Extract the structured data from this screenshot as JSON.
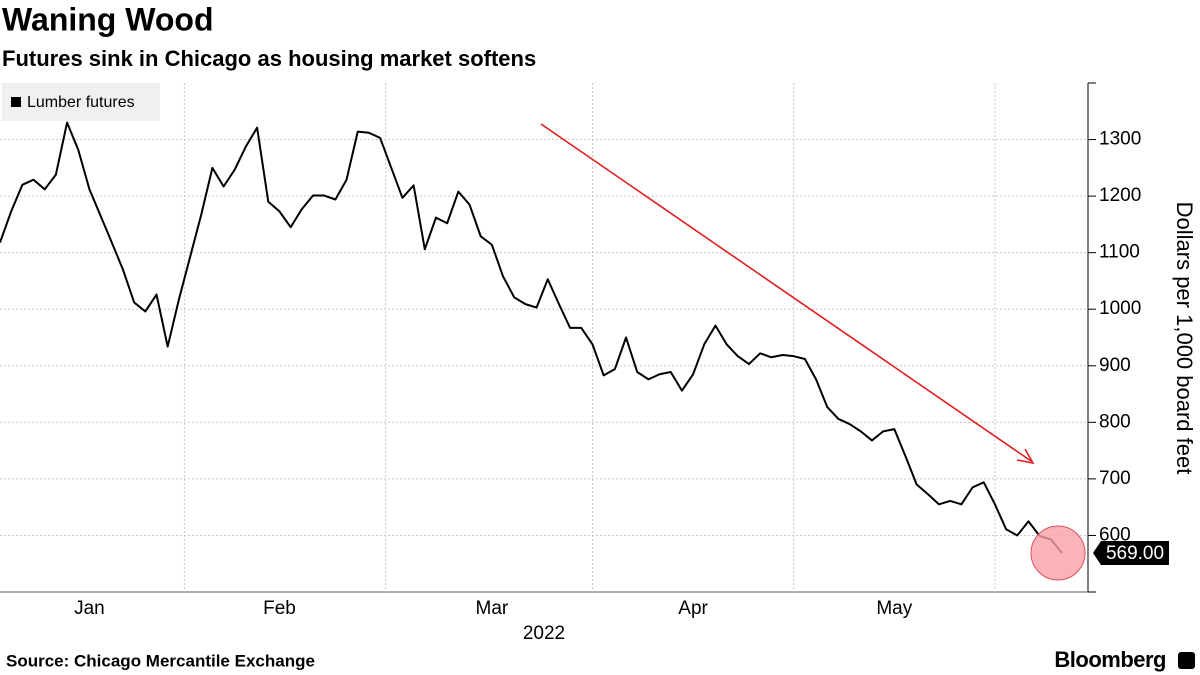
{
  "chart_data": {
    "type": "line",
    "title": "Waning Wood",
    "subtitle": "Futures sink in Chicago as housing market softens",
    "source": "Source: Chicago Mercantile Exchange",
    "brand": "Bloomberg",
    "ylabel": "Dollars per 1,000 board feet",
    "xlabel": "2022",
    "categories": [
      null,
      null,
      null,
      null,
      null,
      null,
      null,
      null,
      "Jan",
      null,
      null,
      null,
      null,
      null,
      null,
      null,
      null,
      null,
      null,
      null,
      null,
      null,
      null,
      null,
      null,
      "Feb",
      null,
      null,
      null,
      null,
      null,
      null,
      null,
      null,
      null,
      null,
      null,
      null,
      null,
      null,
      null,
      null,
      null,
      null,
      "Mar",
      null,
      null,
      null,
      null,
      null,
      null,
      null,
      null,
      null,
      null,
      null,
      null,
      null,
      null,
      null,
      null,
      null,
      "Apr",
      null,
      null,
      null,
      null,
      null,
      null,
      null,
      null,
      null,
      null,
      null,
      null,
      null,
      null,
      null,
      null,
      null,
      "May",
      null,
      null,
      null,
      null,
      null,
      null,
      null,
      null,
      null,
      null,
      null,
      null,
      null,
      null,
      null
    ],
    "series": [
      {
        "name": "Lumber futures",
        "color": "#000000",
        "values": [
          1118,
          1173,
          1220,
          1229,
          1212,
          1238,
          1330,
          1282,
          1212,
          1165,
          1118,
          1070,
          1012,
          996,
          1026,
          934,
          1017,
          1092,
          1167,
          1250,
          1217,
          1247,
          1288,
          1321,
          1190,
          1173,
          1145,
          1177,
          1201,
          1201,
          1194,
          1229,
          1314,
          1312,
          1303,
          1250,
          1197,
          1219,
          1106,
          1162,
          1152,
          1208,
          1185,
          1129,
          1114,
          1058,
          1021,
          1009,
          1003,
          1053,
          1009,
          967,
          967,
          938,
          883,
          894,
          950,
          889,
          876,
          885,
          889,
          856,
          885,
          938,
          971,
          938,
          917,
          903,
          922,
          915,
          919,
          917,
          912,
          876,
          827,
          806,
          797,
          784,
          768,
          784,
          788,
          740,
          690,
          673,
          655,
          661,
          655,
          685,
          694,
          655,
          611,
          600,
          625,
          599,
          593,
          569
        ],
        "value_labels": [
          null,
          null,
          null,
          null,
          null,
          null,
          null,
          null,
          null,
          null,
          null,
          null,
          null,
          null,
          null,
          null,
          null,
          null,
          null,
          null,
          null,
          null,
          null,
          null,
          null,
          null,
          null,
          null,
          null,
          null,
          null,
          null,
          null,
          null,
          null,
          null,
          null,
          null,
          null,
          null,
          null,
          null,
          null,
          null,
          null,
          null,
          null,
          null,
          null,
          null,
          null,
          null,
          null,
          null,
          null,
          null,
          null,
          null,
          null,
          null,
          null,
          null,
          null,
          null,
          null,
          null,
          null,
          null,
          null,
          null,
          null,
          null,
          null,
          null,
          null,
          null,
          null,
          null,
          null,
          null,
          null,
          null,
          null,
          null,
          null,
          null,
          null,
          null,
          null,
          null,
          null,
          null,
          null,
          null,
          null,
          "569.00"
        ]
      }
    ],
    "ylim": [
      500,
      1400
    ],
    "yticks": [
      600,
      700,
      800,
      900,
      1000,
      1100,
      1200,
      1300
    ],
    "grid": true,
    "legend": "top-left"
  }
}
